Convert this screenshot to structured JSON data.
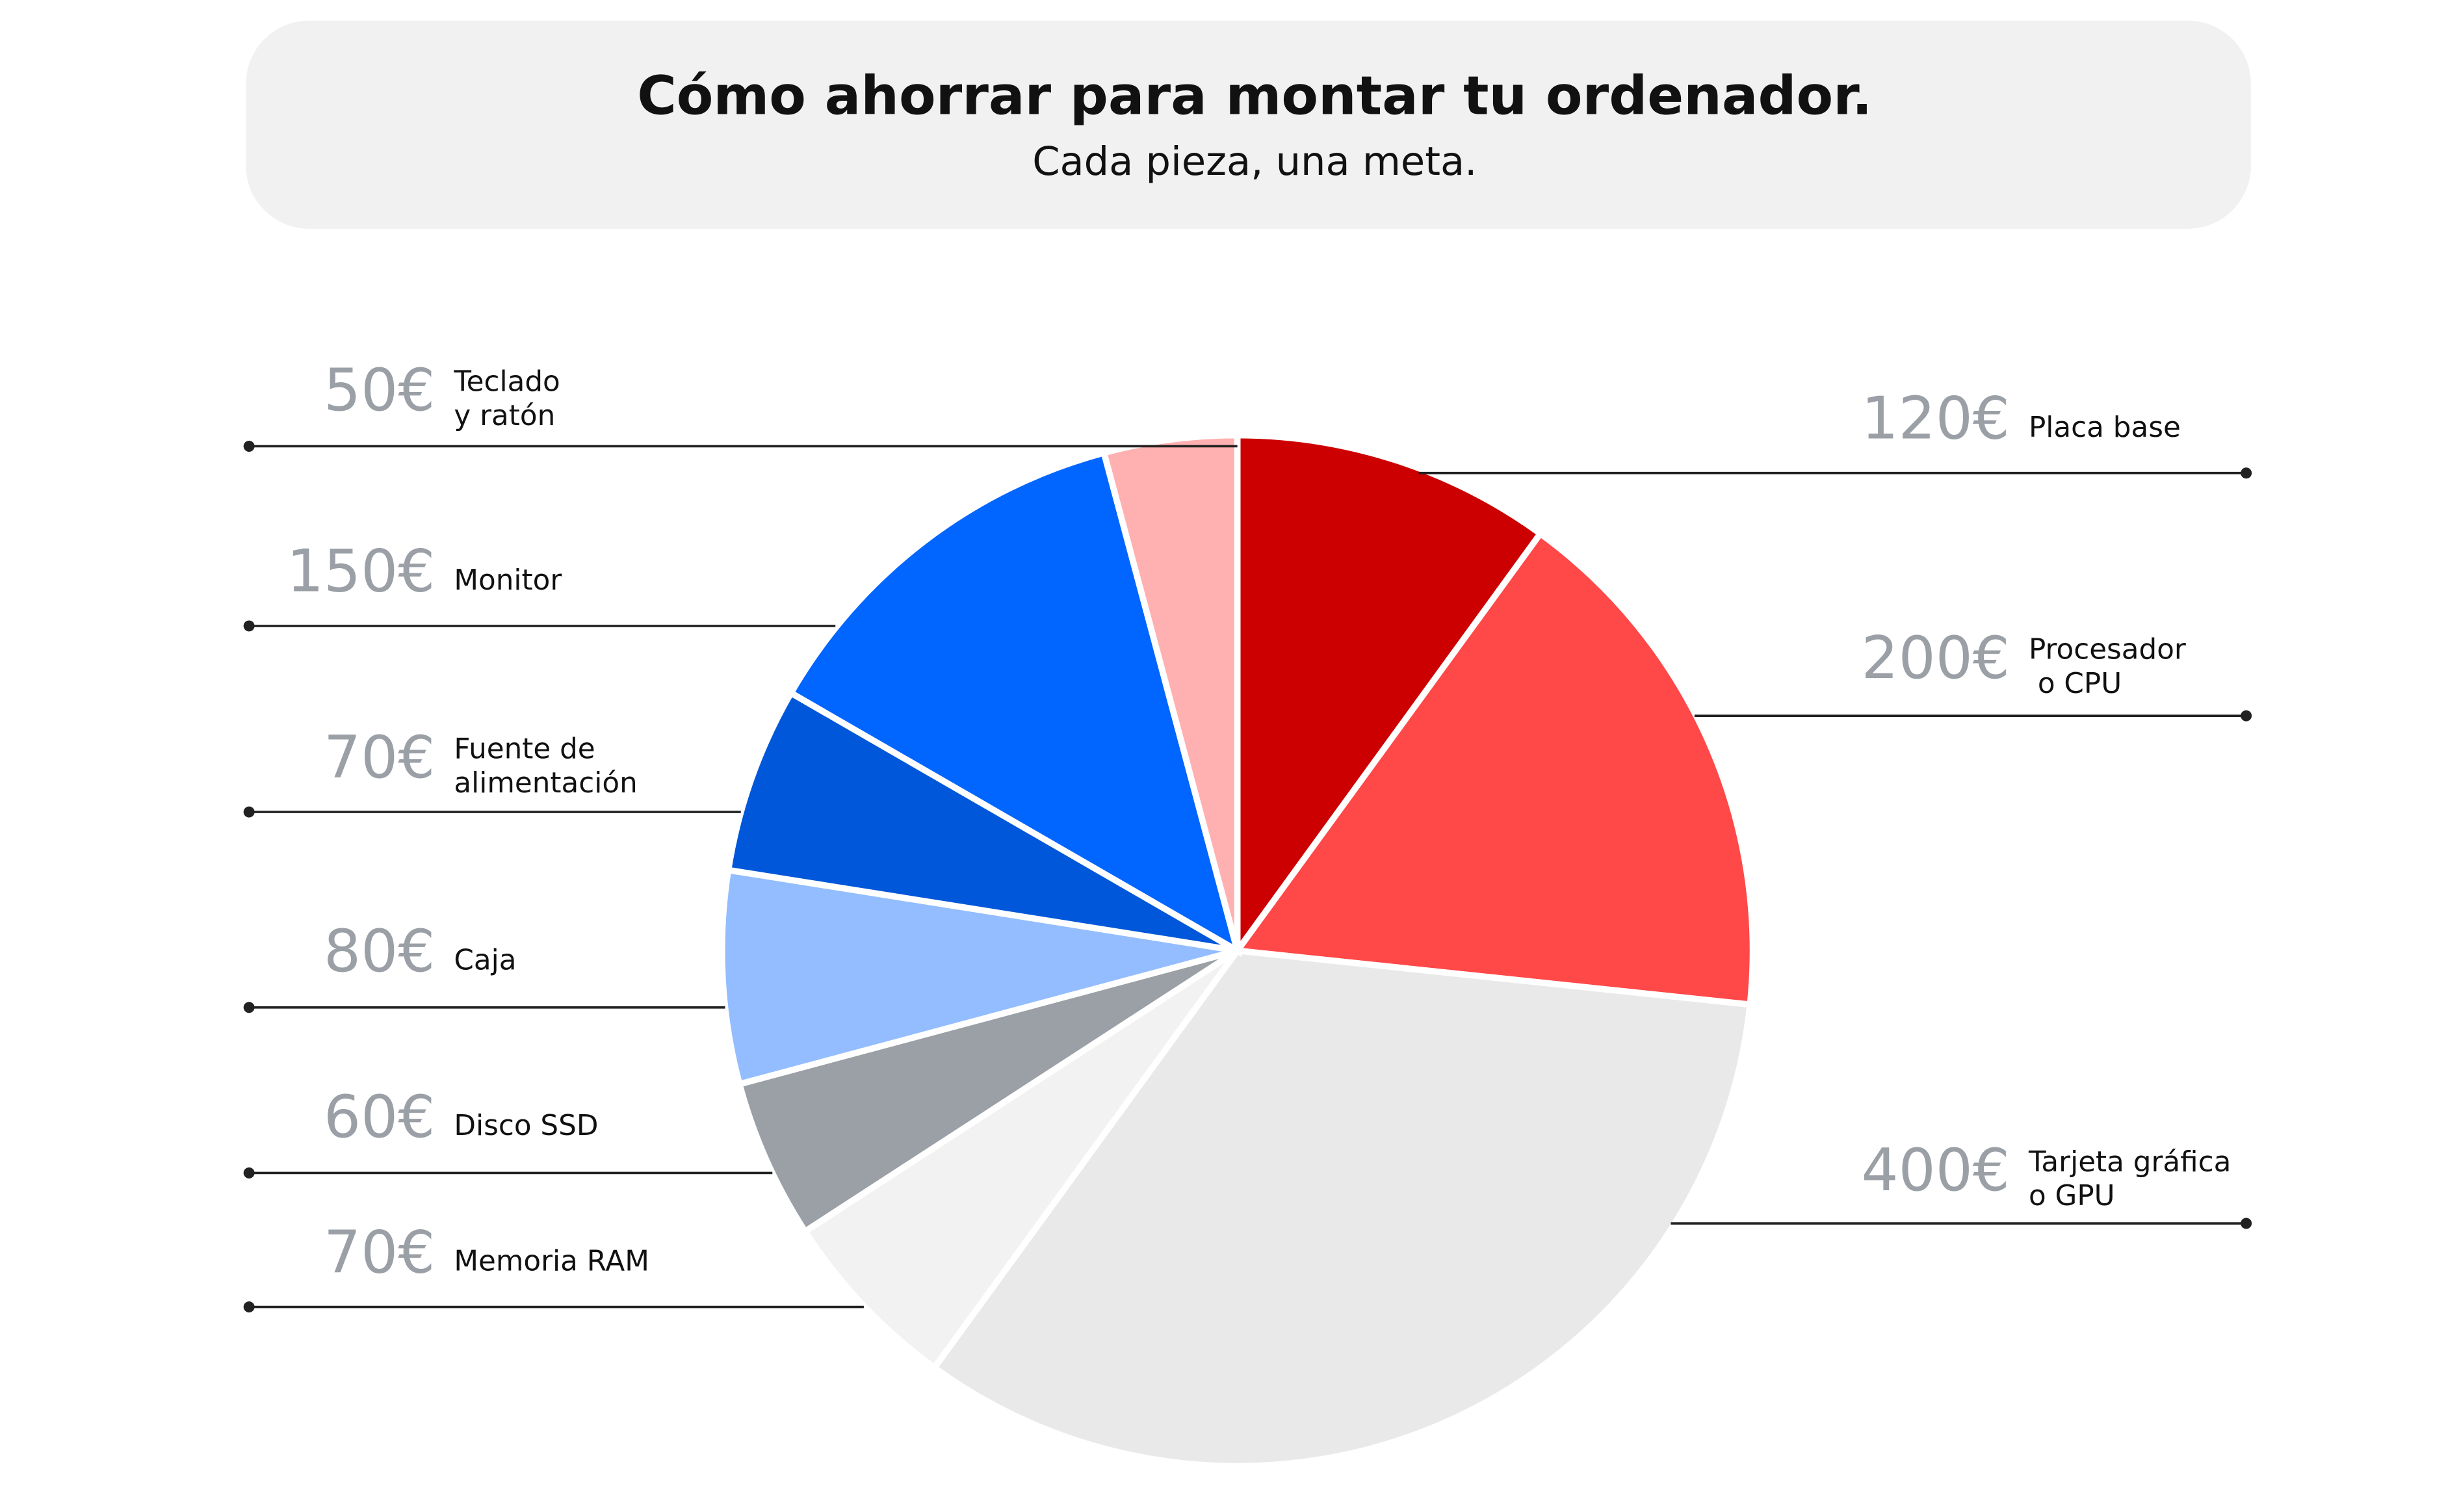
{
  "chart_data": {
    "type": "pie",
    "title": "Cómo ahorrar para montar tu ordenador.",
    "subtitle": "Cada pieza, una meta.",
    "categories": [
      "Placa base",
      "Procesador\n o CPU",
      "Tarjeta gráfica\no GPU",
      "Memoria RAM",
      "Disco SSD",
      "Caja",
      "Fuente de\nalimentación",
      "Monitor",
      "Teclado\ny ratón"
    ],
    "values": [
      120,
      200,
      400,
      70,
      60,
      80,
      70,
      150,
      50
    ],
    "value_labels": [
      "120€",
      "200€",
      "400€",
      "70€",
      "60€",
      "80€",
      "70€",
      "150€",
      "50€"
    ],
    "colors": [
      "#cc0000",
      "#ff4848",
      "#e8e9e8",
      "#f2f2f2",
      "#9aa0a5",
      "#94bdff",
      "#0057d9",
      "#0066ff",
      "#ffb0b0"
    ]
  }
}
